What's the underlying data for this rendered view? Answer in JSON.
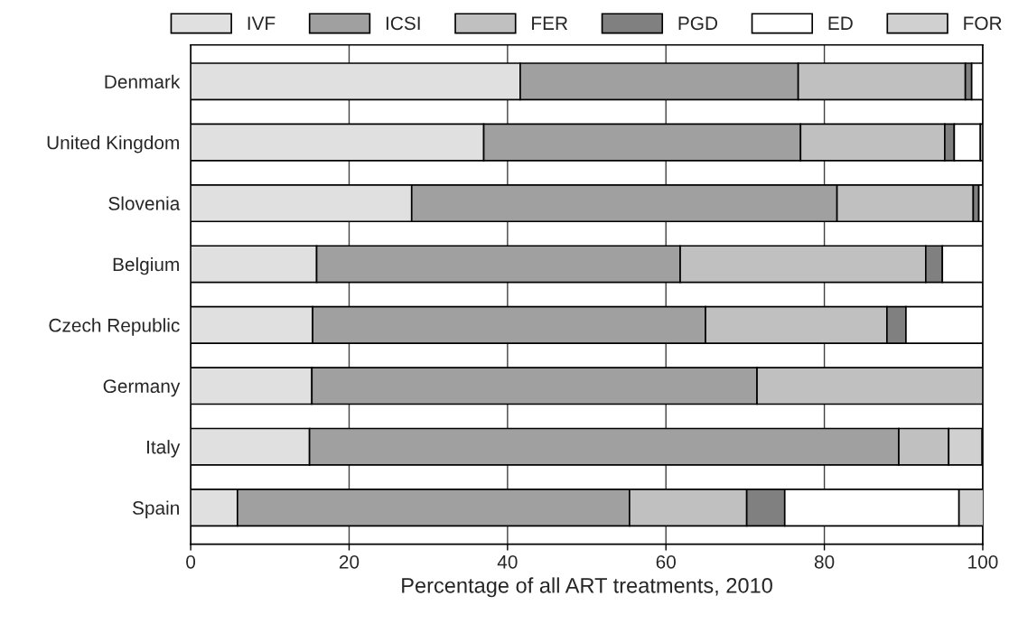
{
  "chart_data": {
    "type": "bar",
    "orientation": "horizontal",
    "stacked": true,
    "xlabel": "Percentage of all ART treatments, 2010",
    "categories": [
      "Denmark",
      "United Kingdom",
      "Slovenia",
      "Belgium",
      "Czech Republic",
      "Germany",
      "Italy",
      "Spain"
    ],
    "series": [
      {
        "name": "IVF",
        "color": "#e0e0e0",
        "values": [
          41.6,
          37.0,
          27.9,
          15.9,
          15.4,
          15.3,
          15.0,
          5.9
        ]
      },
      {
        "name": "ICSI",
        "color": "#a0a0a0",
        "values": [
          35.1,
          40.0,
          53.7,
          45.9,
          49.6,
          56.2,
          74.4,
          49.5
        ]
      },
      {
        "name": "FER",
        "color": "#c0c0c0",
        "values": [
          21.1,
          18.2,
          17.2,
          31.0,
          22.9,
          28.5,
          6.3,
          14.8
        ]
      },
      {
        "name": "PGD",
        "color": "#808080",
        "values": [
          0.8,
          1.2,
          0.7,
          2.1,
          2.4,
          null,
          null,
          4.8
        ]
      },
      {
        "name": "ED",
        "color": "#ffffff",
        "values": [
          1.4,
          3.3,
          0.5,
          5.1,
          9.7,
          null,
          null,
          22.0
        ]
      },
      {
        "name": "FOR",
        "color": "#d0d0d0",
        "values": [
          null,
          0.3,
          null,
          null,
          null,
          null,
          4.2,
          3.1
        ]
      }
    ],
    "xlim": [
      0,
      100
    ],
    "xticks": [
      0,
      20,
      40,
      60,
      80,
      100
    ],
    "grid": "x",
    "legend": "top"
  }
}
